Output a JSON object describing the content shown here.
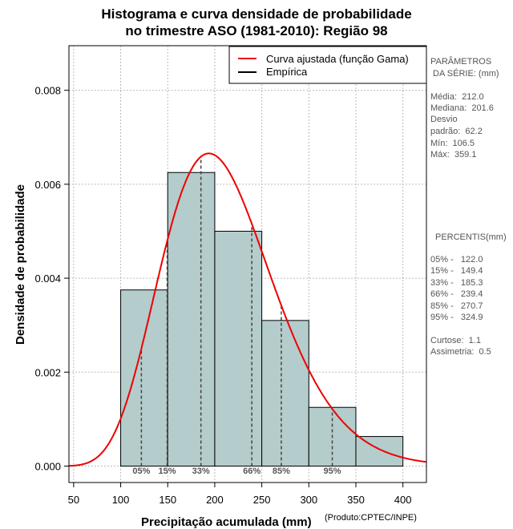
{
  "title_line1": "Histograma e curva densidade de probabilidade",
  "title_line2": "no trimestre ASO (1981-2010): Região 98",
  "chart_data": {
    "type": "bar",
    "title": "Histograma e curva densidade de probabilidade no trimestre ASO (1981-2010): Região 98",
    "xlabel": "Precipitação acumulada (mm)",
    "ylabel": "Densidade de probabilidade",
    "xlim": [
      45,
      425
    ],
    "ylim": [
      -0.00035,
      0.00895
    ],
    "x_ticks": [
      50,
      100,
      150,
      200,
      250,
      300,
      350,
      400
    ],
    "y_ticks": [
      0.0,
      0.002,
      0.004,
      0.006,
      0.008
    ],
    "y_tick_labels": [
      "0.000",
      "0.002",
      "0.004",
      "0.006",
      "0.008"
    ],
    "grid": true,
    "legend_position": "top-right",
    "histogram": {
      "bins": [
        [
          100,
          150
        ],
        [
          150,
          200
        ],
        [
          200,
          250
        ],
        [
          250,
          300
        ],
        [
          300,
          350
        ],
        [
          350,
          400
        ]
      ],
      "density": [
        0.00375,
        0.00625,
        0.005,
        0.0031,
        0.00125,
        0.00063
      ],
      "fill_color": "#b4cccc"
    },
    "gamma_fit": {
      "mean": 212.0,
      "sd": 62.2,
      "color": "#ee0000",
      "label": "Curva ajustada (função Gama)"
    },
    "empirical": {
      "color": "#000000",
      "label": "Empírica"
    },
    "percentiles": [
      {
        "label": "05%",
        "value": 122.0
      },
      {
        "label": "15%",
        "value": 149.4
      },
      {
        "label": "33%",
        "value": 185.3
      },
      {
        "label": "66%",
        "value": 239.4
      },
      {
        "label": "85%",
        "value": 270.7
      },
      {
        "label": "95%",
        "value": 324.9
      }
    ]
  },
  "parameters": {
    "heading_line1": "PARÂMETROS",
    "heading_line2": " DA SÉRIE: (mm)",
    "media": "Média:  212.0",
    "mediana": "Mediana:  201.6",
    "desvio_line1": "Desvio",
    "desvio_line2": "padrão:  62.2",
    "min": "Mín:  106.5",
    "max": "Máx:  359.1"
  },
  "percentiles_panel": {
    "heading": "PERCENTIS(mm)",
    "p05": "05% -   122.0",
    "p15": "15% -   149.4",
    "p33": "33% -   185.3",
    "p66": "66% -   239.4",
    "p85": "85% -   270.7",
    "p95": "95% -   324.9",
    "curtose": "Curtose:  1.1",
    "assimetria": "Assimetria:  0.5"
  },
  "credit": "(Produto:CPTEC/INPE)"
}
